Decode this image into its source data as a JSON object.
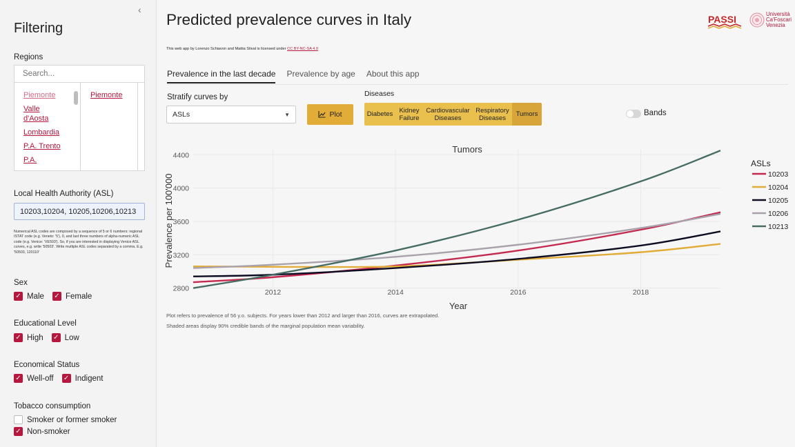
{
  "sidebar": {
    "title": "Filtering",
    "regions_label": "Regions",
    "search_placeholder": "Search...",
    "regions_list": [
      "Piemonte",
      "Valle d'Aosta",
      "Lombardia",
      "P.A. Trento",
      "P.A."
    ],
    "regions_selected": [
      "Piemonte"
    ],
    "asl_label": "Local Health Authority (ASL)",
    "asl_value": "10203,10204, 10205,10206,10213",
    "asl_help": "Numerical ASL codes are composed by a sequence of 5 or 6 numbers: regional ISTAT code (e.g. Veneto: '5'), 0, and last three numbers of alpha-numeric ASL code (e.g. Venice: 'VE503'). So, if you are interested in displaying Venice ASL curves, e.g. write '50503'. Write multiple ASL codes separated by a comma. E.g. '50503, 120110'",
    "sex": {
      "label": "Sex",
      "options": [
        {
          "label": "Male",
          "checked": true
        },
        {
          "label": "Female",
          "checked": true
        }
      ]
    },
    "education": {
      "label": "Educational Level",
      "options": [
        {
          "label": "High",
          "checked": true
        },
        {
          "label": "Low",
          "checked": true
        }
      ]
    },
    "economic": {
      "label": "Economical Status",
      "options": [
        {
          "label": "Well-off",
          "checked": true
        },
        {
          "label": "Indigent",
          "checked": true
        }
      ]
    },
    "tobacco": {
      "label": "Tobacco consumption",
      "options": [
        {
          "label": "Smoker or former smoker",
          "checked": false
        },
        {
          "label": "Non-smoker",
          "checked": true
        }
      ]
    }
  },
  "header": {
    "title": "Predicted prevalence curves in Italy",
    "license_prefix": "This web app by Lorenzo Schiavon and Mattia Stival is licensed under",
    "license_link": "CC BY-NC-SA 4.0",
    "logo_passi_text": "PASSI",
    "logo_uni_text": [
      "Università",
      "Ca'Foscari",
      "Venezia"
    ]
  },
  "tabs": [
    {
      "label": "Prevalence in the last decade",
      "active": true
    },
    {
      "label": "Prevalence by age",
      "active": false
    },
    {
      "label": "About this app",
      "active": false
    }
  ],
  "controls": {
    "stratify_label": "Stratify curves by",
    "stratify_value": "ASLs",
    "plot_button": "Plot",
    "diseases_label": "Diseases",
    "diseases": [
      {
        "label": "Diabetes",
        "active": false
      },
      {
        "label": "Kidney Failure",
        "active": false
      },
      {
        "label": "Cardiovascular Diseases",
        "active": false
      },
      {
        "label": "Respiratory Diseases",
        "active": false
      },
      {
        "label": "Tumors",
        "active": true
      }
    ],
    "bands_label": "Bands",
    "bands_on": false
  },
  "chart_data": {
    "type": "line",
    "title": "Tumors",
    "xlabel": "Year",
    "ylabel": "Prevalence per 100'000",
    "xlim": [
      2010.7,
      2019.3
    ],
    "ylim": [
      2780,
      4460
    ],
    "xticks": [
      2012,
      2014,
      2016,
      2018
    ],
    "yticks": [
      2800,
      3200,
      3600,
      4000,
      4400
    ],
    "grid": true,
    "legend_title": "ASLs",
    "legend_position": "right",
    "x": [
      2010.7,
      2012,
      2014,
      2016,
      2018,
      2019.3
    ],
    "series": [
      {
        "name": "10203",
        "color": "#c4294f",
        "values": [
          2870,
          2930,
          3070,
          3250,
          3500,
          3710
        ]
      },
      {
        "name": "10204",
        "color": "#e1ac38",
        "values": [
          3060,
          3055,
          3060,
          3140,
          3230,
          3330
        ]
      },
      {
        "name": "10205",
        "color": "#0c0c22",
        "values": [
          2940,
          2960,
          3040,
          3150,
          3310,
          3480
        ]
      },
      {
        "name": "10206",
        "color": "#a9a2ad",
        "values": [
          3040,
          3080,
          3175,
          3320,
          3520,
          3690
        ]
      },
      {
        "name": "10213",
        "color": "#466c63",
        "values": [
          2800,
          2960,
          3250,
          3620,
          4080,
          4450
        ]
      }
    ]
  },
  "notes": [
    "Plot refers to prevalence of 56 y.o. subjects. For years lower than 2012 and larger than 2016, curves are extrapolated.",
    "Shaded areas display 90% credible bands of the marginal population mean variability."
  ]
}
